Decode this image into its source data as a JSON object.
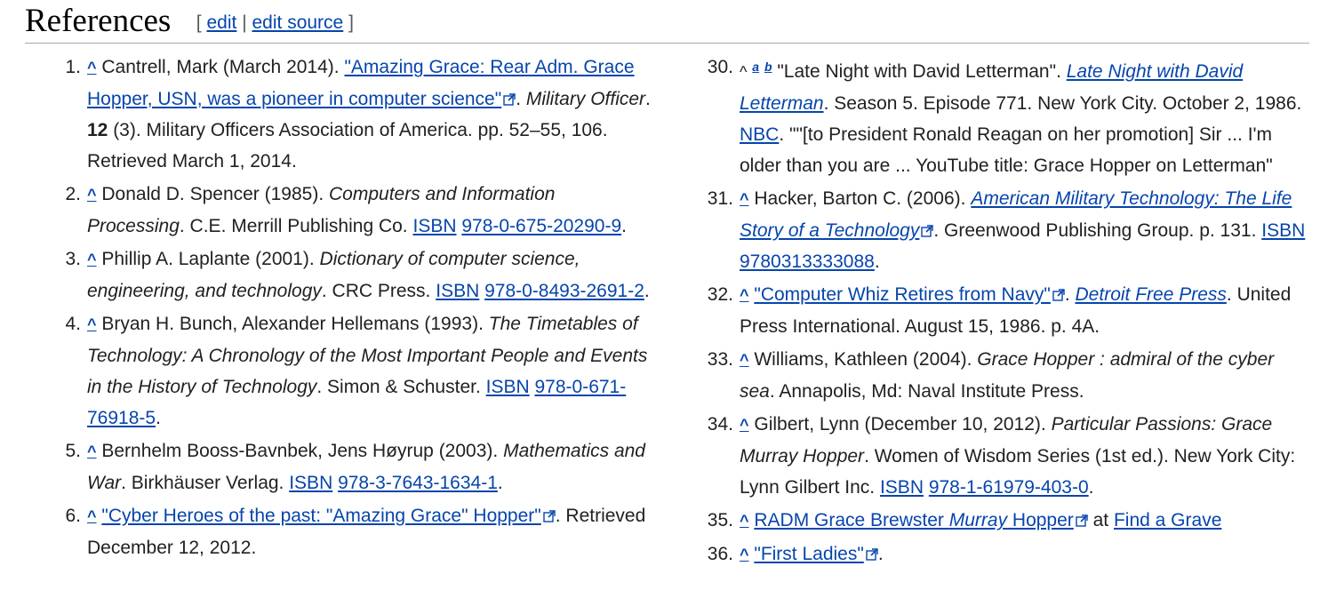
{
  "heading": {
    "title": "References",
    "bracket_open": "[",
    "edit": "edit",
    "sep": "|",
    "edit_source": "edit source",
    "bracket_close": "]"
  },
  "caret": "^",
  "refs": {
    "r1": {
      "num": "1.",
      "t1": "Cantrell, Mark (March 2014). ",
      "link": "\"Amazing Grace: Rear Adm. Grace Hopper, USN, was a pioneer in computer science\"",
      "t2": ". ",
      "it1": "Military Officer",
      "t3": ". ",
      "bold": "12",
      "t4": " (3). Military Officers Association of America. pp. 52–55, 106. Retrieved March 1, 2014."
    },
    "r2": {
      "num": "2.",
      "t1": "Donald D. Spencer (1985). ",
      "it1": "Computers and Information Processing",
      "t2": ". C.E. Merrill Publishing Co. ",
      "isbn": "ISBN",
      "isbn_num": "978-0-675-20290-9",
      "t3": "."
    },
    "r3": {
      "num": "3.",
      "t1": "Phillip A. Laplante (2001). ",
      "it1": "Dictionary of computer science, engineering, and technology",
      "t2": ". CRC Press. ",
      "isbn": "ISBN",
      "isbn_num": "978-0-8493-2691-2",
      "t3": "."
    },
    "r4": {
      "num": "4.",
      "t1": "Bryan H. Bunch, Alexander Hellemans (1993). ",
      "it1": "The Timetables of Technology: A Chronology of the Most Important People and Events in the History of Technology",
      "t2": ". Simon & Schuster. ",
      "isbn": "ISBN",
      "isbn_num": "978-0-671-76918-5",
      "t3": "."
    },
    "r5": {
      "num": "5.",
      "t1": "Bernhelm Booss-Bavnbek, Jens Høyrup (2003). ",
      "it1": "Mathematics and War",
      "t2": ". Birkhäuser Verlag. ",
      "isbn": "ISBN",
      "isbn_num": "978-3-7643-1634-1",
      "t3": "."
    },
    "r6": {
      "num": "6.",
      "link": "\"Cyber Heroes of the past: \"Amazing Grace\" Hopper\"",
      "t1": ". Retrieved December 12, 2012."
    },
    "r30": {
      "num": "30.",
      "sup_a": "a",
      "sup_b": "b",
      "t1": " \"Late Night with David Letterman\". ",
      "link_it": "Late Night with David Letterman",
      "t2": ". Season 5. Episode 771. New York City. October 2, 1986. ",
      "link2": "NBC",
      "t3": ". \"\"[to President Ronald Reagan on her promotion] Sir ... I'm older than you are ... YouTube title: Grace Hopper on Letterman\""
    },
    "r31": {
      "num": "31.",
      "t1": "Hacker, Barton C. (2006). ",
      "link_it": "American Military Technology: The Life Story of a Technology",
      "t2": ". Greenwood Publishing Group. p. 131. ",
      "isbn": "ISBN",
      "isbn_num": "9780313333088",
      "t3": "."
    },
    "r32": {
      "num": "32.",
      "link": "\"Computer Whiz Retires from Navy\"",
      "t1": ". ",
      "link_it": "Detroit Free Press",
      "t2": ". United Press International. August 15, 1986. p. 4A."
    },
    "r33": {
      "num": "33.",
      "t1": "Williams, Kathleen (2004). ",
      "it1": "Grace Hopper : admiral of the cyber sea",
      "t2": ". Annapolis, Md: Naval Institute Press."
    },
    "r34": {
      "num": "34.",
      "t1": "Gilbert, Lynn (December 10, 2012). ",
      "it1": "Particular Passions: Grace Murray Hopper",
      "t2": ". Women of Wisdom Series (1st ed.). New York City: Lynn Gilbert Inc. ",
      "isbn": "ISBN",
      "isbn_num": "978-1-61979-403-0",
      "t3": "."
    },
    "r35": {
      "num": "35.",
      "link_a": "RADM Grace Brewster ",
      "link_it": "Murray",
      "link_b": " Hopper",
      "t1": " at ",
      "link2": "Find a Grave"
    },
    "r36": {
      "num": "36.",
      "link": "\"First Ladies\"",
      "t1": "."
    }
  }
}
